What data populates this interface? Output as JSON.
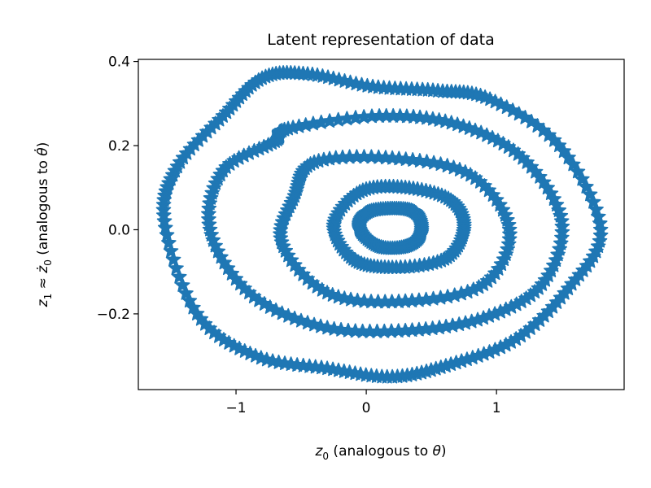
{
  "chart_data": {
    "type": "scatter",
    "title": "Latent representation of data",
    "xlabel": {
      "var": "z",
      "sub": "0",
      "text": " (analogous to ",
      "sym": "θ",
      "close": ")"
    },
    "ylabel": {
      "var1": "z",
      "sub1": "1",
      "approx": " ≈ ",
      "var2": "ż",
      "sub2": "0",
      "text": " (analogous to ",
      "sym": "θ̇",
      "close": ")"
    },
    "xlim": [
      -1.75,
      1.98
    ],
    "ylim": [
      -0.38,
      0.405
    ],
    "xticks": [
      {
        "value": -1,
        "label": "−1"
      },
      {
        "value": 0,
        "label": "0"
      },
      {
        "value": 1,
        "label": "1"
      }
    ],
    "yticks": [
      {
        "value": -0.2,
        "label": "−0.2"
      },
      {
        "value": 0.0,
        "label": "0.0"
      },
      {
        "value": 0.2,
        "label": "0.2"
      },
      {
        "value": 0.4,
        "label": "0.4"
      }
    ],
    "grid": false,
    "legend": "none",
    "marker": "star",
    "color": "#1f77b4",
    "series": [
      {
        "x": [
          -0.45,
          0.05,
          0.55,
          0.95,
          1.48,
          1.8,
          1.55,
          1.15,
          0.65,
          0.2,
          -0.3,
          -0.85,
          -1.3,
          -1.55,
          -1.45,
          -1.1,
          -0.8
        ],
        "y": [
          0.37,
          0.34,
          0.33,
          0.31,
          0.2,
          0.0,
          -0.14,
          -0.26,
          -0.32,
          -0.35,
          -0.33,
          -0.3,
          -0.2,
          0.02,
          0.15,
          0.27,
          0.36
        ]
      },
      {
        "x": [
          -0.6,
          0.1,
          0.7,
          1.2,
          1.5,
          1.35,
          0.9,
          0.3,
          -0.35,
          -0.9,
          -1.2,
          -1.1,
          -0.7
        ],
        "y": [
          0.24,
          0.27,
          0.25,
          0.17,
          0.02,
          -0.13,
          -0.21,
          -0.24,
          -0.23,
          -0.15,
          0.0,
          0.14,
          0.21
        ]
      },
      {
        "x": [
          -0.4,
          0.2,
          0.8,
          1.1,
          0.9,
          0.3,
          -0.3,
          -0.65,
          -0.55
        ],
        "y": [
          0.16,
          0.17,
          0.13,
          0.0,
          -0.13,
          -0.17,
          -0.15,
          -0.03,
          0.08
        ]
      },
      {
        "x": [
          -0.05,
          0.3,
          0.65,
          0.75,
          0.6,
          0.2,
          -0.1,
          -0.25
        ],
        "y": [
          0.09,
          0.1,
          0.07,
          0.0,
          -0.07,
          -0.09,
          -0.07,
          0.01
        ]
      },
      {
        "x": [
          0.0,
          0.2,
          0.38,
          0.42,
          0.3,
          0.1,
          -0.05
        ],
        "y": [
          0.04,
          0.05,
          0.04,
          -0.01,
          -0.04,
          -0.04,
          0.0
        ]
      }
    ]
  }
}
